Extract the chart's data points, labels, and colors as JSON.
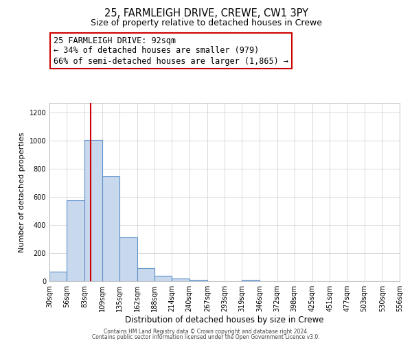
{
  "title": "25, FARMLEIGH DRIVE, CREWE, CW1 3PY",
  "subtitle": "Size of property relative to detached houses in Crewe",
  "xlabel": "Distribution of detached houses by size in Crewe",
  "ylabel": "Number of detached properties",
  "bar_color": "#c9d9ed",
  "bar_edge_color": "#5b8fc9",
  "bin_edges": [
    30,
    56,
    83,
    109,
    135,
    162,
    188,
    214,
    240,
    267,
    293,
    319,
    346,
    372,
    398,
    425,
    451,
    477,
    503,
    530,
    556
  ],
  "bin_labels": [
    "30sqm",
    "56sqm",
    "83sqm",
    "109sqm",
    "135sqm",
    "162sqm",
    "188sqm",
    "214sqm",
    "240sqm",
    "267sqm",
    "293sqm",
    "319sqm",
    "346sqm",
    "372sqm",
    "398sqm",
    "425sqm",
    "451sqm",
    "477sqm",
    "503sqm",
    "530sqm",
    "556sqm"
  ],
  "bar_heights": [
    70,
    575,
    1005,
    745,
    315,
    95,
    40,
    20,
    10,
    0,
    0,
    10,
    0,
    0,
    0,
    0,
    0,
    0,
    0,
    0
  ],
  "vline_x": 92,
  "vline_color": "#cc0000",
  "annotation_title": "25 FARMLEIGH DRIVE: 92sqm",
  "annotation_line1": "← 34% of detached houses are smaller (979)",
  "annotation_line2": "66% of semi-detached houses are larger (1,865) →",
  "ylim": [
    0,
    1270
  ],
  "background_color": "#ffffff",
  "grid_color": "#cccccc",
  "footer1": "Contains HM Land Registry data © Crown copyright and database right 2024.",
  "footer2": "Contains public sector information licensed under the Open Government Licence v3.0."
}
